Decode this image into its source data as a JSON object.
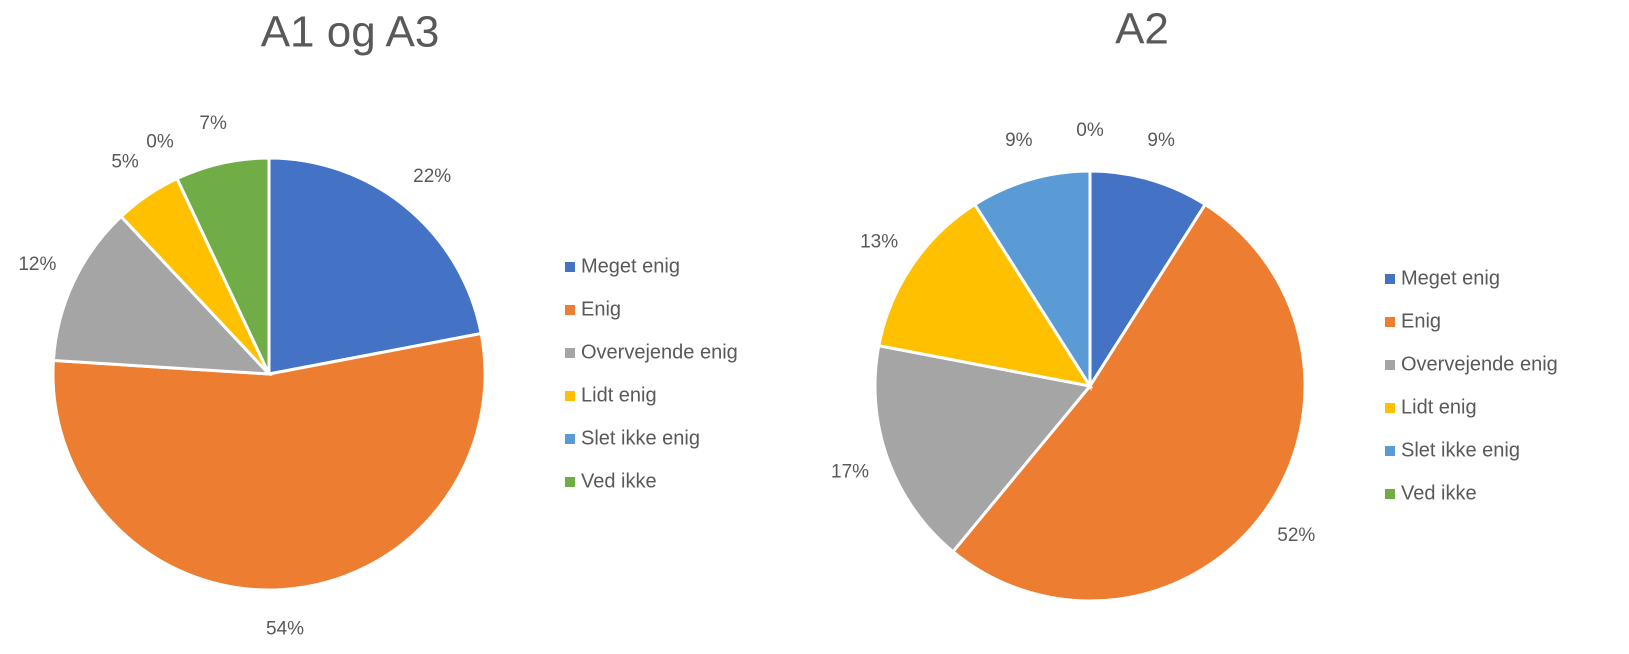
{
  "chart_data": [
    {
      "type": "pie",
      "title": "A1 og A3",
      "categories": [
        "Meget enig",
        "Enig",
        "Overvejende enig",
        "Lidt enig",
        "Slet ikke enig",
        "Ved ikke"
      ],
      "values": [
        22,
        54,
        12,
        5,
        0,
        7
      ],
      "value_labels": [
        "22%",
        "54%",
        "12%",
        "5%",
        "0%",
        "7%"
      ],
      "colors": [
        "#4472c4",
        "#ed7d31",
        "#a5a5a5",
        "#ffc000",
        "#5b9bd5",
        "#70ad47"
      ],
      "legend": "right"
    },
    {
      "type": "pie",
      "title": "A2",
      "categories": [
        "Meget enig",
        "Enig",
        "Overvejende enig",
        "Lidt enig",
        "Slet ikke enig",
        "Ved ikke"
      ],
      "values": [
        9,
        52,
        17,
        13,
        9,
        0
      ],
      "value_labels": [
        "9%",
        "52%",
        "17%",
        "13%",
        "9%",
        "0%"
      ],
      "colors": [
        "#4472c4",
        "#ed7d31",
        "#a5a5a5",
        "#ffc000",
        "#5b9bd5",
        "#70ad47"
      ],
      "legend": "right"
    }
  ]
}
